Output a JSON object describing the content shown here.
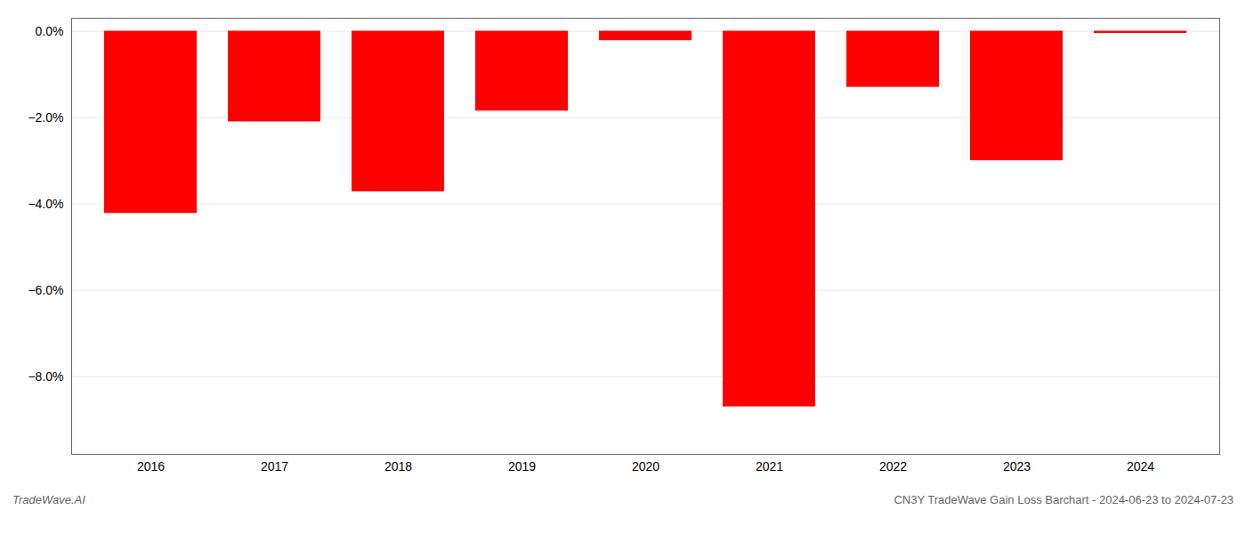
{
  "chart_data": {
    "type": "bar",
    "categories": [
      "2016",
      "2017",
      "2018",
      "2019",
      "2020",
      "2021",
      "2022",
      "2023",
      "2024"
    ],
    "values": [
      -4.22,
      -2.1,
      -3.72,
      -1.85,
      -0.22,
      -8.7,
      -1.3,
      -3.0,
      -0.05
    ],
    "color": "#ff0000",
    "ylim": [
      -9.8,
      0.3
    ],
    "yticks": [
      {
        "value": 0,
        "label": "0.0%"
      },
      {
        "value": -2,
        "label": "−2.0%"
      },
      {
        "value": -4,
        "label": "−4.0%"
      },
      {
        "value": -6,
        "label": "−6.0%"
      },
      {
        "value": -8,
        "label": "−8.0%"
      }
    ],
    "grid": true,
    "annotations": [
      "TradeWave.AI",
      "CN3Y TradeWave Gain Loss Barchart - 2024-06-23 to 2024-07-23"
    ]
  }
}
